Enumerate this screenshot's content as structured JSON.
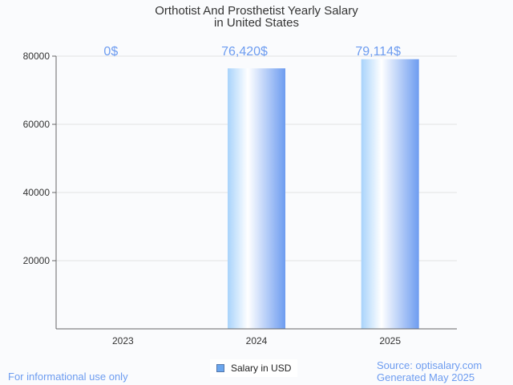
{
  "chart_data": {
    "type": "bar",
    "title": "Orthotist And Prosthetist Yearly Salary",
    "subtitle": "in United States",
    "categories": [
      "2023",
      "2024",
      "2025"
    ],
    "values": [
      0,
      76420,
      79114
    ],
    "data_labels": [
      "0$",
      "76,420$",
      "79,114$"
    ],
    "ylim": [
      0,
      80000
    ],
    "yticks": [
      "20000",
      "40000",
      "60000",
      "80000"
    ],
    "ytick_values": [
      20000,
      40000,
      60000,
      80000
    ],
    "grid": true,
    "legend": {
      "label": "Salary in USD",
      "position": "bottom"
    },
    "xlabel": "",
    "ylabel": ""
  },
  "footer": {
    "left": "For informational use only",
    "source": "Source: optisalary.com",
    "generated": "Generated May 2025"
  },
  "colors": {
    "label": "#6d9cf0",
    "bar_dark": "#6d9cf0",
    "bar_light": "#a8d3fb"
  }
}
